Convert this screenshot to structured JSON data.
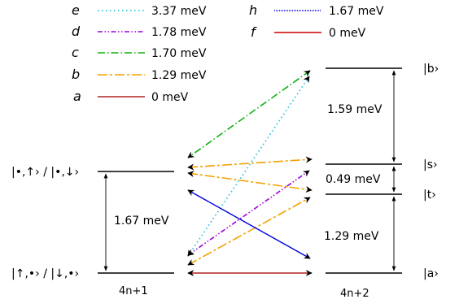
{
  "legend": {
    "left": [
      {
        "letter": "e",
        "value": "3.37 meV",
        "color": "#2ec4d8",
        "dash": "1.5,3.5"
      },
      {
        "letter": "d",
        "value": "1.78 meV",
        "color": "#9b00d6",
        "dash": "6,2.5,1.5,2.5,1.5,2.5"
      },
      {
        "letter": "c",
        "value": "1.70 meV",
        "color": "#10b010",
        "dash": "9,3,1.5,3"
      },
      {
        "letter": "b",
        "value": "1.29 meV",
        "color": "#f5a000",
        "dash": "12,3,3,3"
      },
      {
        "letter": "a",
        "value": "0 meV",
        "color": "#b22222",
        "dash": ""
      }
    ],
    "right": [
      {
        "letter": "h",
        "value": "1.67 meV",
        "color": "#0000e0",
        "dash": "1,1"
      },
      {
        "letter": "f",
        "value": "0 meV",
        "color": "#cc0000",
        "dash": ""
      }
    ]
  },
  "left_group": {
    "label": "4n+1",
    "upper_state": "|•,↑› / |•,↓›",
    "lower_state": "|↑,•› / |↓,•›",
    "gap": "1.67 meV"
  },
  "right_group": {
    "label": "4n+2",
    "states": [
      "|b›",
      "|s›",
      "|t›",
      "|a›"
    ],
    "gaps": [
      "1.59 meV",
      "0.49 meV",
      "1.29 meV"
    ]
  }
}
